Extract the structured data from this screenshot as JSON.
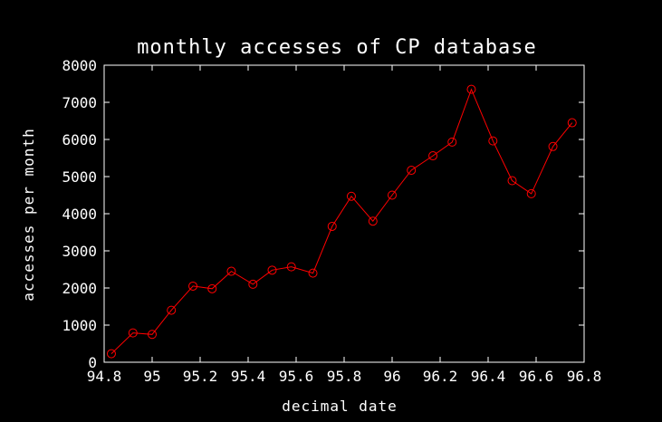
{
  "chart_data": {
    "type": "line",
    "title": "monthly accesses of CP database",
    "xlabel": "decimal date",
    "ylabel": "accesses per month",
    "xlim": [
      94.8,
      96.8
    ],
    "ylim": [
      0,
      8000
    ],
    "x_ticks": [
      94.8,
      95,
      95.2,
      95.4,
      95.6,
      95.8,
      96,
      96.2,
      96.4,
      96.6,
      96.8
    ],
    "x_tick_labels": [
      "94.8",
      "95",
      "95.2",
      "95.4",
      "95.6",
      "95.8",
      "96",
      "96.2",
      "96.4",
      "96.6",
      "96.8"
    ],
    "y_ticks": [
      0,
      1000,
      2000,
      3000,
      4000,
      5000,
      6000,
      7000,
      8000
    ],
    "y_tick_labels": [
      "0",
      "1000",
      "2000",
      "3000",
      "4000",
      "5000",
      "6000",
      "7000",
      "8000"
    ],
    "grid": false,
    "marker": "open-circle",
    "colors": {
      "background": "#000000",
      "axes": "#ffffff",
      "text": "#ffffff",
      "series": "#ff0000"
    },
    "series": [
      {
        "x": [
          94.83,
          94.92,
          95.0,
          95.08,
          95.17,
          95.25,
          95.33,
          95.42,
          95.5,
          95.58,
          95.67,
          95.75,
          95.83,
          95.92,
          96.0,
          96.08,
          96.17,
          96.25,
          96.33,
          96.42,
          96.5,
          96.58,
          96.67,
          96.75
        ],
        "y": [
          230,
          790,
          750,
          1400,
          2050,
          1980,
          2450,
          2100,
          2480,
          2570,
          2400,
          3660,
          4470,
          3800,
          4500,
          5170,
          5560,
          5930,
          7350,
          5960,
          4890,
          4540,
          5810,
          6450
        ]
      }
    ]
  }
}
